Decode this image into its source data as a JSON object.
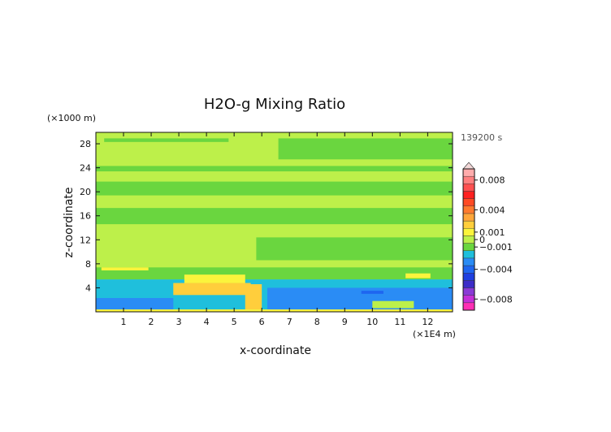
{
  "chart_data": {
    "type": "heatmap",
    "title": "H2O-g Mixing Ratio",
    "xlabel": "x-coordinate",
    "ylabel": "z-coordinate",
    "x_unit_label": "(×1E4 m)",
    "y_unit_label": "(×1000 m)",
    "time_label": "139200 s",
    "xlim": [
      0,
      12.9
    ],
    "ylim": [
      0,
      29.9
    ],
    "x_ticks": [
      1,
      2,
      3,
      4,
      5,
      6,
      7,
      8,
      9,
      10,
      11,
      12
    ],
    "y_ticks": [
      4,
      8,
      12,
      16,
      20,
      24,
      28
    ],
    "colorbar": {
      "levels": [
        -0.009,
        -0.008,
        -0.007,
        -0.006,
        -0.005,
        -0.004,
        -0.003,
        -0.002,
        -0.001,
        0,
        0.001,
        0.002,
        0.003,
        0.004,
        0.005,
        0.006,
        0.007,
        0.008,
        0.009
      ],
      "colors": [
        "#ff2fb4",
        "#c42fd8",
        "#8a3ad6",
        "#3c2cc8",
        "#1f3fe0",
        "#1e66f0",
        "#2a8cf5",
        "#1fbfdc",
        "#6ad63f",
        "#bdf04a",
        "#fbf43c",
        "#ffce3c",
        "#ffa63a",
        "#ff7a2e",
        "#ff4a24",
        "#ff2020",
        "#ff5050",
        "#ff8080",
        "#ffacac"
      ],
      "labels": [
        {
          "value": 0.008,
          "text": "0.008"
        },
        {
          "value": 0.004,
          "text": "0.004"
        },
        {
          "value": 0.001,
          "text": "0.001"
        },
        {
          "value": 0,
          "text": "0"
        },
        {
          "value": -0.001,
          "text": "−0.001"
        },
        {
          "value": -0.004,
          "text": "−0.004"
        },
        {
          "value": -0.008,
          "text": "−0.008"
        }
      ]
    },
    "regions": [
      {
        "x": [
          0,
          12.9
        ],
        "y": [
          0,
          29.9
        ],
        "value": 0.0005
      },
      {
        "x": [
          0.3,
          4.8
        ],
        "y": [
          28.3,
          28.9
        ],
        "value": -0.0005
      },
      {
        "x": [
          6.6,
          12.9
        ],
        "y": [
          25.4,
          28.9
        ],
        "value": -0.0005
      },
      {
        "x": [
          0,
          12.9
        ],
        "y": [
          23.4,
          24.3
        ],
        "value": -0.0005
      },
      {
        "x": [
          0,
          12.9
        ],
        "y": [
          19.4,
          21.7
        ],
        "value": -0.0005
      },
      {
        "x": [
          0,
          12.9
        ],
        "y": [
          14.6,
          17.3
        ],
        "value": -0.0005
      },
      {
        "x": [
          5.8,
          12.9
        ],
        "y": [
          8.6,
          12.4
        ],
        "value": -0.0005
      },
      {
        "x": [
          0,
          12.9
        ],
        "y": [
          5.4,
          7.4
        ],
        "value": -0.0005
      },
      {
        "x": [
          0,
          12.9
        ],
        "y": [
          0,
          5.4
        ],
        "value": -0.0015
      },
      {
        "x": [
          0.2,
          1.9
        ],
        "y": [
          6.9,
          7.4
        ],
        "value": 0.0015
      },
      {
        "x": [
          11.2,
          12.1
        ],
        "y": [
          5.6,
          6.4
        ],
        "value": 0.0015
      },
      {
        "x": [
          3.2,
          5.4
        ],
        "y": [
          4.8,
          6.2
        ],
        "value": 0.0015
      },
      {
        "x": [
          2.8,
          5.6
        ],
        "y": [
          2.8,
          4.8
        ],
        "value": 0.0025
      },
      {
        "x": [
          5.4,
          6.0
        ],
        "y": [
          0.4,
          4.6
        ],
        "value": 0.0025
      },
      {
        "x": [
          0,
          2.8
        ],
        "y": [
          0.4,
          2.3
        ],
        "value": -0.0025
      },
      {
        "x": [
          6.2,
          12.9
        ],
        "y": [
          0.4,
          4.0
        ],
        "value": -0.0025
      },
      {
        "x": [
          9.6,
          10.4
        ],
        "y": [
          3.0,
          3.5
        ],
        "value": -0.0035
      },
      {
        "x": [
          10.0,
          11.5
        ],
        "y": [
          0.6,
          1.8
        ],
        "value": 0.0005
      },
      {
        "x": [
          0,
          12.9
        ],
        "y": [
          0,
          0.4
        ],
        "value": 0.0015
      }
    ]
  }
}
